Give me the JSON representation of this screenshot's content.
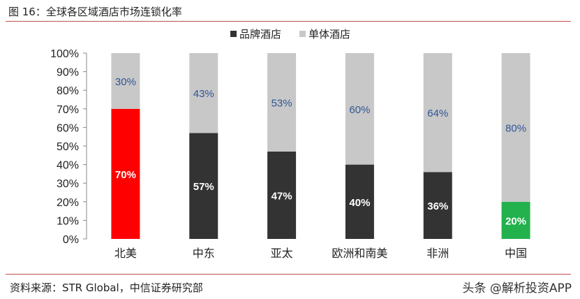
{
  "figure_title": "图 16：全球各区域酒店市场连锁化率",
  "source": "资料来源：STR Global，中信证券研究部",
  "watermark": "头条 @解析投资APP",
  "chart_data": {
    "type": "bar",
    "stacked": true,
    "categories": [
      "北美",
      "中东",
      "亚太",
      "欧洲和南美",
      "非洲",
      "中国"
    ],
    "series": [
      {
        "name": "品牌酒店",
        "values": [
          70,
          57,
          47,
          40,
          36,
          20
        ],
        "color": "#333333"
      },
      {
        "name": "单体酒店",
        "values": [
          30,
          43,
          53,
          60,
          64,
          80
        ],
        "color": "#c8c8c8"
      }
    ],
    "highlight_colors": {
      "北美": "#ff0000",
      "中国": "#22b14c"
    },
    "ylim": [
      0,
      100
    ],
    "y_ticks": [
      "0%",
      "10%",
      "20%",
      "30%",
      "40%",
      "50%",
      "60%",
      "70%",
      "80%",
      "90%",
      "100%"
    ],
    "value_suffix": "%",
    "legend_position": "top-center",
    "grid": false
  }
}
